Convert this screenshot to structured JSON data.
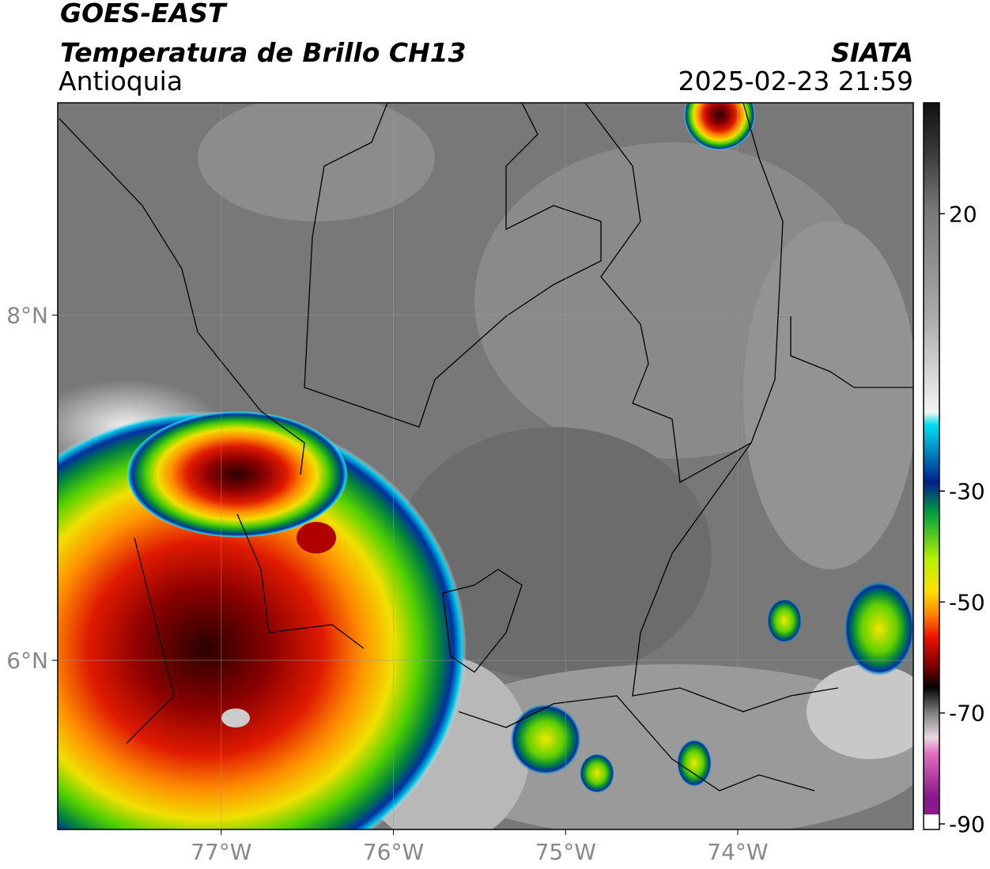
{
  "map": {
    "title": "GOES-EAST",
    "subtitle": "Temperatura de Brillo CH13",
    "region": "Antioquia",
    "source": "SIATA",
    "datetime": "2025-02-23 21:59",
    "lonlim": [
      -77.95,
      -72.98
    ],
    "latlim": [
      5.02,
      9.23
    ],
    "lonticks": [
      {
        "value": -77,
        "label": "77°W"
      },
      {
        "value": -76,
        "label": "76°W"
      },
      {
        "value": -75,
        "label": "75°W"
      },
      {
        "value": -74,
        "label": "74°W"
      }
    ],
    "latticks": [
      {
        "value": 8,
        "label": "8°N"
      },
      {
        "value": 6,
        "label": "6°N"
      }
    ],
    "grid": true,
    "colorbar": {
      "clim": [
        -91,
        40
      ],
      "ticks": [
        20,
        -30,
        -50,
        -70,
        -90
      ]
    }
  }
}
